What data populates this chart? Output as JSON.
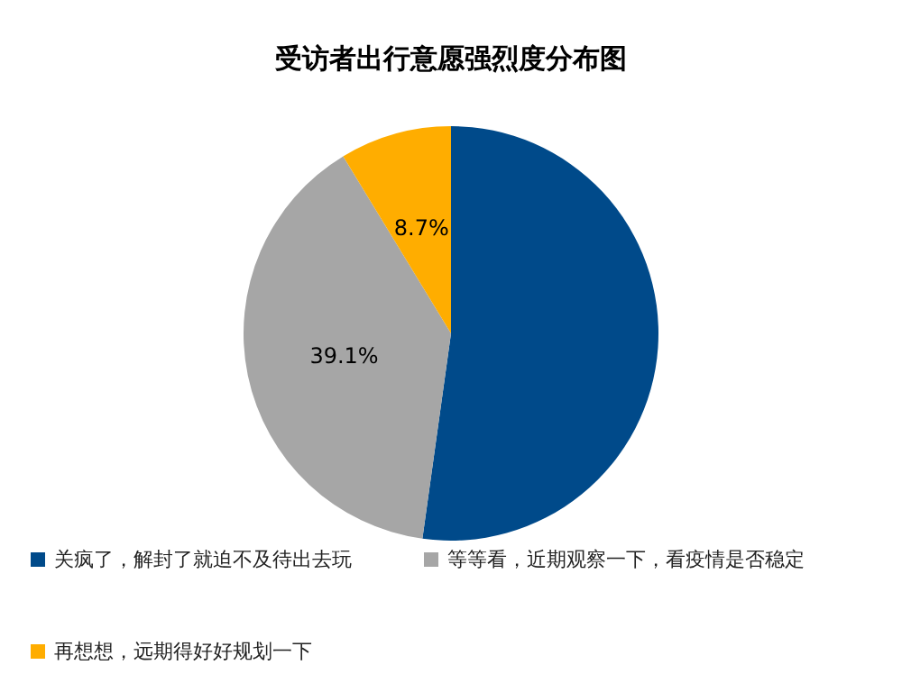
{
  "chart_data": {
    "type": "pie",
    "title": "受访者出行意愿强烈度分布图",
    "categories": [
      "关疯了，解封了就迫不及待出去玩",
      "等等看，近期观察一下，看疫情是否稳定",
      "再想想，远期得好好规划一下"
    ],
    "values": [
      52.2,
      39.1,
      8.7
    ],
    "value_labels": [
      null,
      "39.1%",
      "8.7%"
    ],
    "colors": [
      "#004a8a",
      "#a6a6a6",
      "#ffad00"
    ],
    "legend": "bottom"
  }
}
